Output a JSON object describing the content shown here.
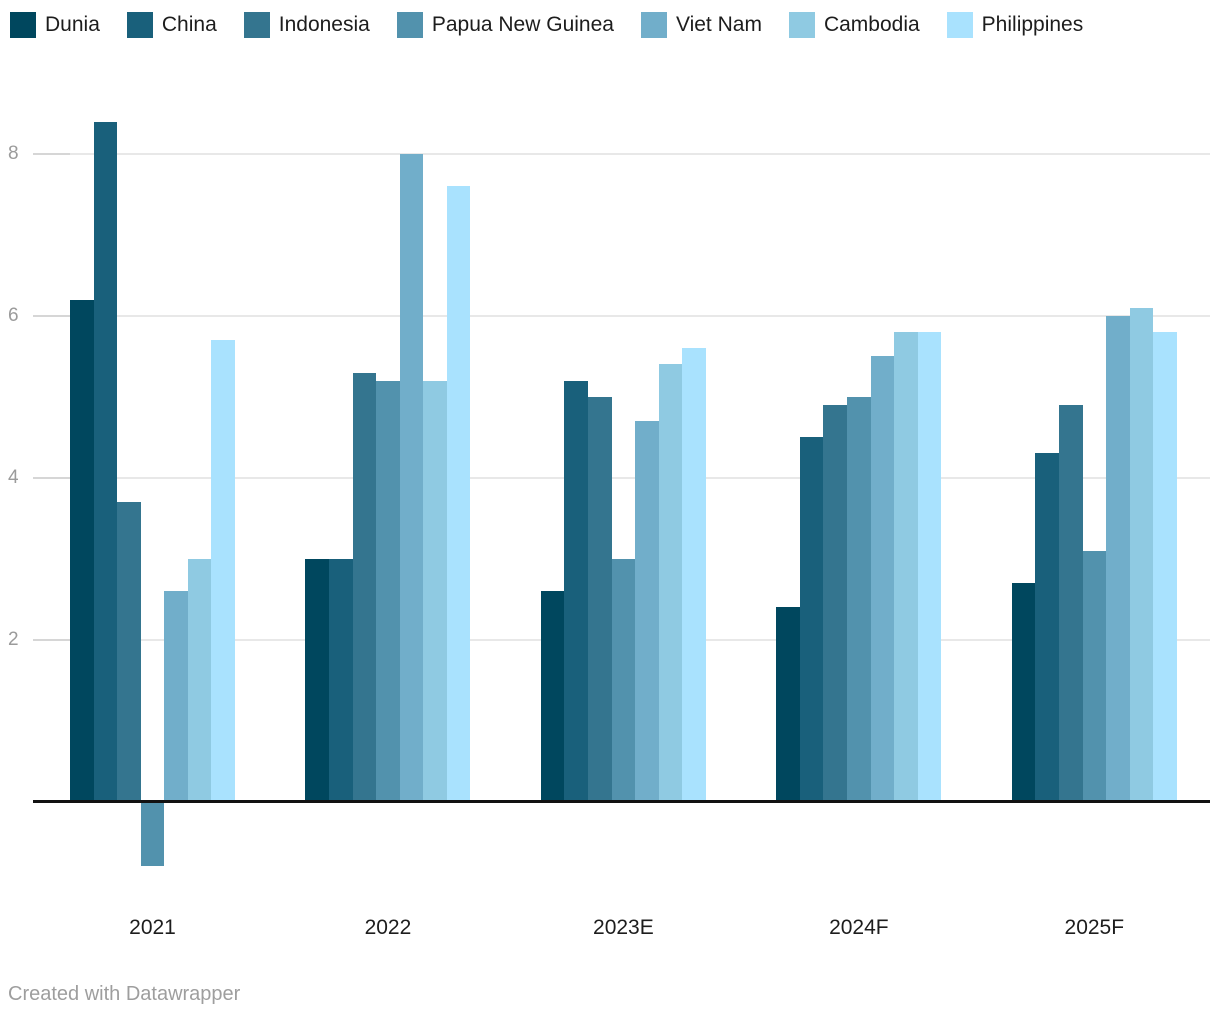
{
  "chart_data": {
    "type": "bar",
    "title": "",
    "categories": [
      "2021",
      "2022",
      "2023E",
      "2024F",
      "2025F"
    ],
    "series": [
      {
        "name": "Dunia",
        "color": "#00475e",
        "values": [
          6.2,
          3.0,
          2.6,
          2.4,
          2.7
        ]
      },
      {
        "name": "China",
        "color": "#19607b",
        "values": [
          8.4,
          3.0,
          5.2,
          4.5,
          4.3
        ]
      },
      {
        "name": "Indonesia",
        "color": "#34758f",
        "values": [
          3.7,
          5.3,
          5.0,
          4.9,
          4.9
        ]
      },
      {
        "name": "Papua New Guinea",
        "color": "#5292ad",
        "values": [
          -0.8,
          5.2,
          3.0,
          5.0,
          3.1
        ]
      },
      {
        "name": "Viet Nam",
        "color": "#71aeca",
        "values": [
          2.6,
          8.0,
          4.7,
          5.5,
          6.0
        ]
      },
      {
        "name": "Cambodia",
        "color": "#8fcae2",
        "values": [
          3.0,
          5.2,
          5.4,
          5.8,
          6.1
        ]
      },
      {
        "name": "Philippines",
        "color": "#a9e2fe",
        "values": [
          5.7,
          7.6,
          5.6,
          5.8,
          5.8
        ]
      }
    ],
    "xlabel": "",
    "ylabel": "",
    "y_ticks": [
      2,
      4,
      6,
      8
    ],
    "ylim": [
      -1.0,
      8.8
    ],
    "grid": "horizontal",
    "legend_position": "top",
    "baseline_value": 0
  },
  "colors": {
    "background": "#ffffff",
    "gridline": "#e8e8e8",
    "tick_dash": "#d6d6d6",
    "axis_line": "#121212",
    "y_tick_label": "#9b9b9b",
    "x_tick_label": "#1d1d1d",
    "legend_label": "#1d1d1d",
    "credit_text": "#9e9e9e"
  },
  "footer": {
    "credit": "Created with Datawrapper"
  }
}
